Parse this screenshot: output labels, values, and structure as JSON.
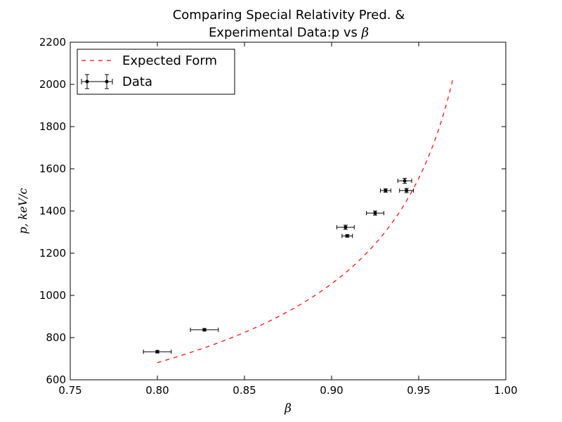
{
  "chart_data": {
    "type": "scatter",
    "title_line1": "Comparing Special Relativity Pred. &",
    "title_line2_prefix": "Experimental Data:p vs ",
    "title_line2_symbol": "β",
    "xlabel": "β",
    "ylabel": "p, keV/c",
    "xlim": [
      0.75,
      1.0
    ],
    "ylim": [
      600,
      2200
    ],
    "xticks": [
      0.75,
      0.8,
      0.85,
      0.9,
      0.95,
      1.0
    ],
    "xtick_labels": [
      "0.75",
      "0.80",
      "0.85",
      "0.90",
      "0.95",
      "1.00"
    ],
    "yticks": [
      600,
      800,
      1000,
      1200,
      1400,
      1600,
      1800,
      2000,
      2200
    ],
    "ytick_labels": [
      "600",
      "800",
      "1000",
      "1200",
      "1400",
      "1600",
      "1800",
      "2000",
      "2200"
    ],
    "grid": false,
    "legend": {
      "placement": "top-left",
      "entries": [
        {
          "label": "Expected Form",
          "style": "dashed-line",
          "color": "#ff0000"
        },
        {
          "label": "Data",
          "style": "errorbar-points",
          "color": "#000000"
        }
      ]
    },
    "series": [
      {
        "name": "Expected Form",
        "kind": "line",
        "style": "dashed",
        "color": "#ff0000",
        "formula": "p = 511 * beta / sqrt(1 - beta^2)",
        "x_range": [
          0.8,
          0.97
        ]
      },
      {
        "name": "Data",
        "kind": "errorbar",
        "color": "#000000",
        "points": [
          {
            "x": 0.8,
            "y": 733,
            "xerr": 0.008,
            "yerr": 6
          },
          {
            "x": 0.827,
            "y": 837,
            "xerr": 0.008,
            "yerr": 6
          },
          {
            "x": 0.908,
            "y": 1323,
            "xerr": 0.005,
            "yerr": 10
          },
          {
            "x": 0.909,
            "y": 1282,
            "xerr": 0.003,
            "yerr": 6
          },
          {
            "x": 0.925,
            "y": 1390,
            "xerr": 0.005,
            "yerr": 10
          },
          {
            "x": 0.931,
            "y": 1497,
            "xerr": 0.003,
            "yerr": 8
          },
          {
            "x": 0.942,
            "y": 1543,
            "xerr": 0.004,
            "yerr": 12
          },
          {
            "x": 0.943,
            "y": 1497,
            "xerr": 0.004,
            "yerr": 10
          }
        ]
      }
    ]
  }
}
